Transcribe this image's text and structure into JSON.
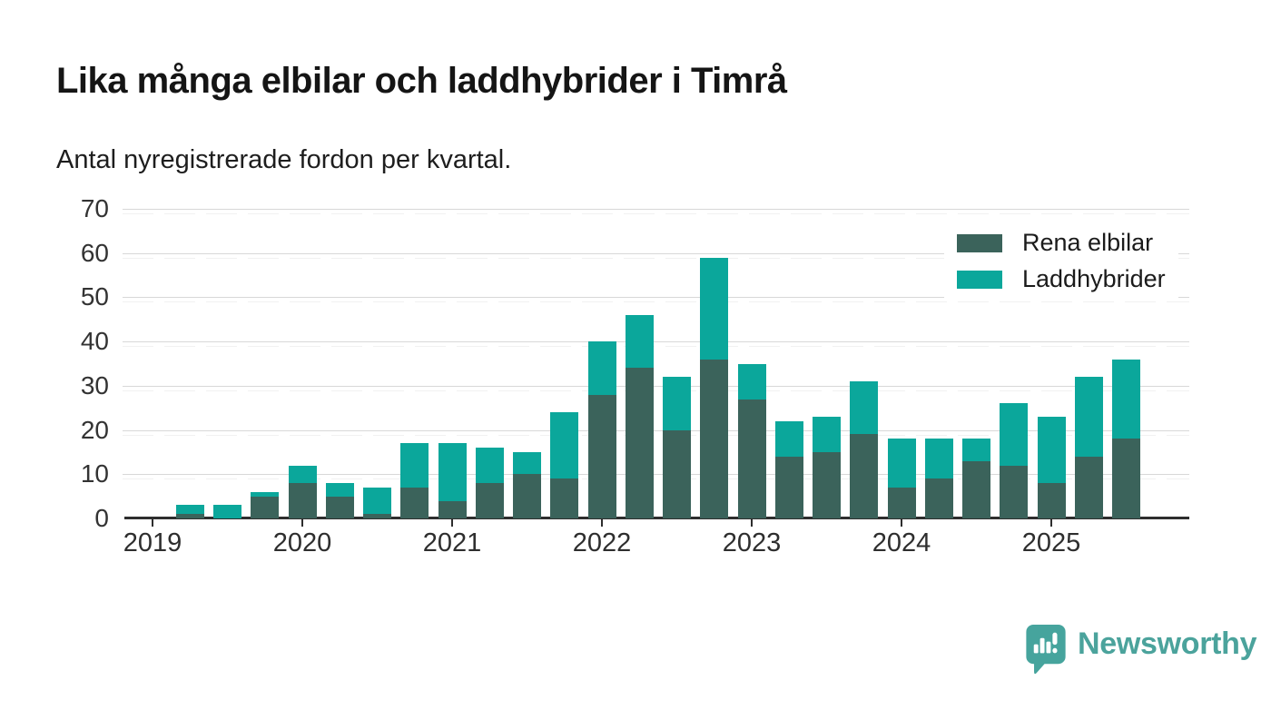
{
  "header": {
    "title": "Lika många elbilar och laddhybrider i Timrå",
    "subtitle": "Antal nyregistrerade fordon per kvartal."
  },
  "chart_data": {
    "type": "bar",
    "stacked": true,
    "title": "Lika många elbilar och laddhybrider i Timrå",
    "subtitle": "Antal nyregistrerade fordon per kvartal.",
    "categories": [
      "2019 Q1",
      "2019 Q2",
      "2019 Q3",
      "2019 Q4",
      "2020 Q1",
      "2020 Q2",
      "2020 Q3",
      "2020 Q4",
      "2021 Q1",
      "2021 Q2",
      "2021 Q3",
      "2021 Q4",
      "2022 Q1",
      "2022 Q2",
      "2022 Q3",
      "2022 Q4",
      "2023 Q1",
      "2023 Q2",
      "2023 Q3",
      "2023 Q4",
      "2024 Q1",
      "2024 Q2",
      "2024 Q3",
      "2024 Q4",
      "2025 Q1",
      "2025 Q2",
      "2025 Q3"
    ],
    "series": [
      {
        "name": "Rena elbilar",
        "color": "#3b635b",
        "values": [
          0,
          1,
          0,
          5,
          8,
          5,
          1,
          7,
          4,
          8,
          10,
          9,
          28,
          34,
          20,
          36,
          27,
          14,
          15,
          19,
          7,
          9,
          13,
          12,
          8,
          14,
          18
        ]
      },
      {
        "name": "Laddhybrider",
        "color": "#0ba79b",
        "values": [
          0,
          2,
          3,
          1,
          4,
          3,
          6,
          10,
          13,
          8,
          5,
          15,
          12,
          12,
          12,
          23,
          8,
          8,
          8,
          12,
          11,
          9,
          5,
          14,
          15,
          18,
          18
        ]
      }
    ],
    "ylim": [
      0,
      70
    ],
    "y_ticks": [
      0,
      10,
      20,
      30,
      40,
      50,
      60,
      70
    ],
    "x_ticks": [
      {
        "index": 0,
        "label": "2019"
      },
      {
        "index": 4,
        "label": "2020"
      },
      {
        "index": 8,
        "label": "2021"
      },
      {
        "index": 12,
        "label": "2022"
      },
      {
        "index": 16,
        "label": "2023"
      },
      {
        "index": 20,
        "label": "2024"
      },
      {
        "index": 24,
        "label": "2025"
      }
    ],
    "grid": "horizontal",
    "legend_position": "top-right"
  },
  "footer": {
    "brand": "Newsworthy",
    "brand_color": "#4ba39c",
    "logo_color": "#46a49d",
    "logo_icon": "bar-chart-speech-bubble"
  }
}
